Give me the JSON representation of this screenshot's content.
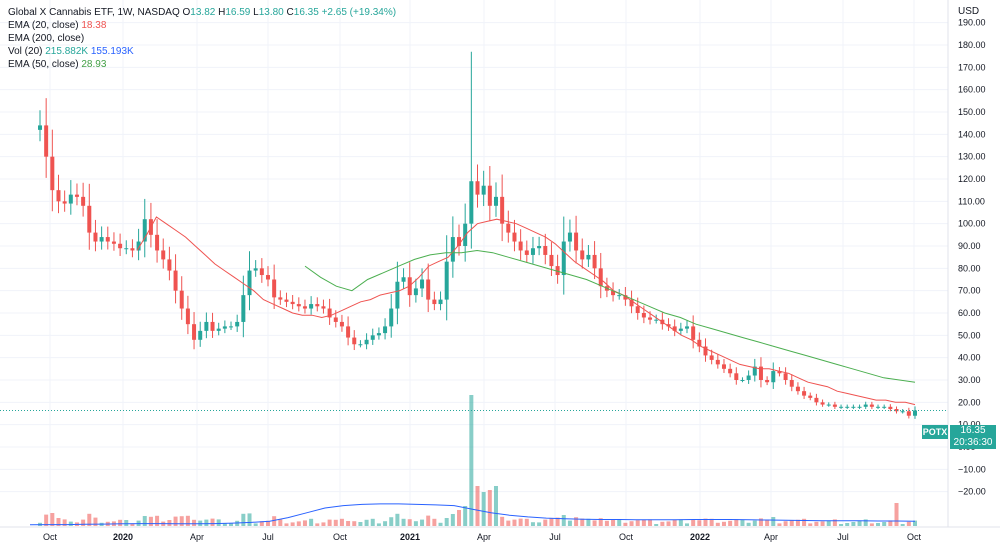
{
  "legend": {
    "title": "Global X Cannabis ETF, 1W, NASDAQ",
    "ohlc": {
      "o_label": "O",
      "o": "13.82",
      "h_label": "H",
      "h": "16.59",
      "l_label": "L",
      "l": "13.80",
      "c_label": "C",
      "c": "16.35",
      "chg": "+2.65 (+19.34%)"
    },
    "ema20_label": "EMA (20, close)",
    "ema20_value": "18.38",
    "ema200_label": "EMA (200, close)",
    "vol_label": "Vol (20)",
    "vol_value": "215.882K",
    "vol_ma_value": "155.193K",
    "ema50_label": "EMA (50, close)",
    "ema50_value": "28.93"
  },
  "price_scale": {
    "currency": "USD",
    "ticks": [
      "190.00",
      "180.00",
      "170.00",
      "160.00",
      "150.00",
      "140.00",
      "130.00",
      "120.00",
      "110.00",
      "100.00",
      "90.00",
      "80.00",
      "70.00",
      "60.00",
      "50.00",
      "40.00",
      "30.00",
      "20.00",
      "10.00",
      "0.00",
      "−10.00",
      "−20.00"
    ],
    "tick_values": [
      190,
      180,
      170,
      160,
      150,
      140,
      130,
      120,
      110,
      100,
      90,
      80,
      70,
      60,
      50,
      40,
      30,
      20,
      10,
      0,
      -10,
      -20
    ]
  },
  "time_scale": {
    "labels": [
      "Oct",
      "2020",
      "Apr",
      "Jul",
      "Oct",
      "2021",
      "Apr",
      "Jul",
      "Oct",
      "2022",
      "Apr",
      "Jul",
      "Oct"
    ],
    "bold_labels": [
      "2020",
      "2021",
      "2022"
    ]
  },
  "last_price": {
    "symbol": "POTX",
    "price": "16.35",
    "countdown": "20:36:30"
  },
  "colors": {
    "up": "#26a69a",
    "down": "#ef5350",
    "ema20": "#ef5350",
    "ema50": "#4caf50",
    "vol_ma": "#2962ff",
    "grid": "#f0f3fa",
    "text": "#131722"
  },
  "chart_data": {
    "type": "candlestick",
    "title": "Global X Cannabis ETF, 1W, NASDAQ",
    "ylim": [
      -22,
      192
    ],
    "close_series": [
      144,
      130,
      115,
      110,
      109,
      113,
      112,
      108,
      96,
      92,
      94,
      92,
      91,
      89,
      89,
      88,
      92,
      102,
      95,
      88,
      84,
      79,
      70,
      62,
      55,
      48,
      52,
      56,
      52,
      53,
      54,
      54,
      56,
      68,
      79,
      80,
      77,
      75,
      67,
      66,
      65,
      64,
      63,
      62,
      64,
      63,
      62,
      58,
      56,
      54,
      49,
      46,
      46,
      48,
      50,
      51,
      54,
      62,
      74,
      76,
      68,
      71,
      75,
      66,
      64,
      66,
      83,
      94,
      90,
      100,
      119,
      113,
      117,
      108,
      112,
      100,
      96,
      92,
      88,
      86,
      89,
      90,
      86,
      81,
      77,
      92,
      96,
      88,
      84,
      86,
      80,
      72,
      70,
      68,
      68,
      66,
      63,
      60,
      58,
      57,
      57,
      55,
      54,
      52,
      53,
      54,
      48,
      45,
      41,
      39,
      37,
      35,
      33,
      30,
      30,
      32,
      36,
      30,
      29,
      34,
      33,
      30,
      27,
      25,
      23,
      22,
      20,
      19,
      19,
      18,
      18,
      18,
      18,
      18,
      19,
      18,
      18,
      18,
      17,
      16,
      16,
      14,
      16.35
    ],
    "ema20": [
      88,
      95,
      103,
      100,
      97,
      94,
      90,
      86,
      82,
      79,
      76,
      73,
      70,
      66,
      64,
      62,
      60,
      59,
      59,
      58,
      59,
      61,
      63,
      65,
      66,
      68,
      69,
      70,
      72,
      76,
      81,
      83,
      85,
      90,
      96,
      100,
      101,
      102,
      101,
      100,
      98,
      96,
      94,
      91,
      87,
      83,
      80,
      77,
      74,
      70,
      68,
      65,
      62,
      59,
      56,
      53,
      50,
      48,
      45,
      43,
      41,
      39,
      37,
      36,
      35,
      35,
      34,
      33,
      31,
      29,
      28,
      27,
      25,
      24,
      23,
      22,
      21,
      21,
      20,
      20,
      19
    ],
    "ema50": [
      81,
      76,
      72,
      70,
      75,
      78,
      81,
      84,
      86,
      87,
      87,
      88,
      87,
      85,
      83,
      81,
      79,
      77,
      75,
      72,
      69,
      66,
      63,
      60,
      58,
      55,
      53,
      51,
      49,
      47,
      45,
      43,
      41,
      39,
      37,
      35,
      33,
      31,
      30,
      29
    ],
    "volume_ma": [
      0.05,
      0.06,
      0.06,
      0.07,
      0.08,
      0.09,
      0.1,
      0.1,
      0.09,
      0.09,
      0.1,
      0.12,
      0.15,
      0.2,
      0.35,
      0.55,
      0.75,
      0.85,
      0.9,
      0.92,
      0.92,
      0.9,
      0.88,
      0.85,
      0.7,
      0.55,
      0.45,
      0.38,
      0.33,
      0.3,
      0.28,
      0.27,
      0.27,
      0.26,
      0.26,
      0.26,
      0.27,
      0.27,
      0.27,
      0.26,
      0.25,
      0.24,
      0.23,
      0.22,
      0.22,
      0.22,
      0.21,
      0.21,
      0.2
    ]
  }
}
